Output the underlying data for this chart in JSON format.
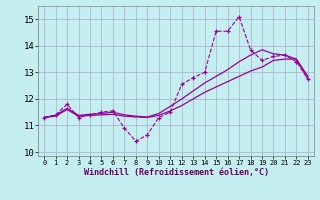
{
  "xlabel": "Windchill (Refroidissement éolien,°C)",
  "bg_color": "#c5eef0",
  "grid_color": "#aaaacc",
  "line_color": "#990099",
  "xlim": [
    -0.5,
    23.5
  ],
  "ylim": [
    9.85,
    15.5
  ],
  "yticks": [
    10,
    11,
    12,
    13,
    14,
    15
  ],
  "xticks": [
    0,
    1,
    2,
    3,
    4,
    5,
    6,
    7,
    8,
    9,
    10,
    11,
    12,
    13,
    14,
    15,
    16,
    17,
    18,
    19,
    20,
    21,
    22,
    23
  ],
  "line1_x": [
    0,
    1,
    2,
    3,
    4,
    5,
    6,
    7,
    8,
    9,
    10,
    11,
    12,
    13,
    14,
    15,
    16,
    17,
    18,
    19,
    20,
    21,
    22,
    23
  ],
  "line1_y": [
    11.3,
    11.4,
    11.8,
    11.3,
    11.4,
    11.5,
    11.55,
    10.9,
    10.4,
    10.65,
    11.3,
    11.5,
    12.55,
    12.8,
    13.0,
    14.55,
    14.55,
    15.1,
    13.85,
    13.45,
    13.6,
    13.65,
    13.4,
    12.75
  ],
  "line2_x": [
    0,
    1,
    2,
    3,
    4,
    5,
    6,
    7,
    8,
    9,
    10,
    11,
    12,
    13,
    14,
    15,
    16,
    17,
    18,
    19,
    20,
    21,
    22,
    23
  ],
  "line2_y": [
    11.3,
    11.35,
    11.6,
    11.35,
    11.38,
    11.4,
    11.42,
    11.35,
    11.32,
    11.3,
    11.38,
    11.55,
    11.75,
    12.0,
    12.25,
    12.45,
    12.65,
    12.85,
    13.05,
    13.2,
    13.45,
    13.5,
    13.5,
    12.75
  ],
  "line3_x": [
    0,
    1,
    2,
    3,
    4,
    5,
    6,
    7,
    8,
    9,
    10,
    11,
    12,
    13,
    14,
    15,
    16,
    17,
    18,
    19,
    20,
    21,
    22,
    23
  ],
  "line3_y": [
    11.3,
    11.38,
    11.65,
    11.38,
    11.42,
    11.45,
    11.5,
    11.4,
    11.35,
    11.32,
    11.45,
    11.72,
    12.0,
    12.3,
    12.6,
    12.85,
    13.1,
    13.4,
    13.65,
    13.85,
    13.7,
    13.65,
    13.5,
    12.85
  ]
}
